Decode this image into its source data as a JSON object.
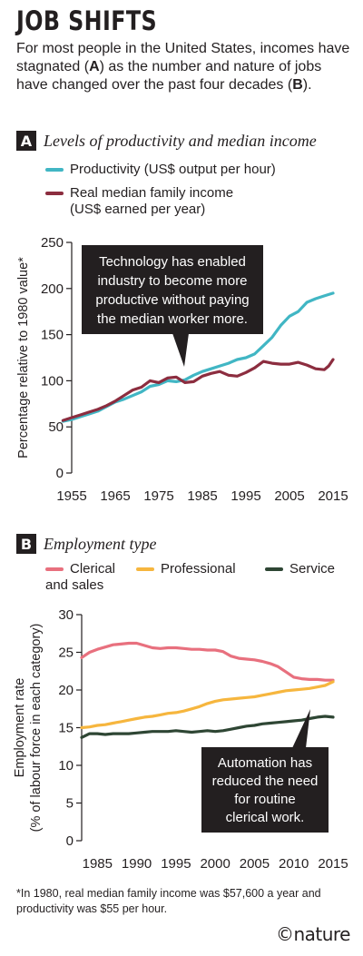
{
  "header": {
    "title": "JOB SHIFTS",
    "intro_parts": [
      "For most people in the United States, incomes have stagnated (",
      "A",
      ") as the number and nature of jobs have changed over the past four decades (",
      "B",
      ")."
    ]
  },
  "chart_data": [
    {
      "type": "line",
      "panel": "A",
      "title": "Levels of productivity and median income",
      "ylabel": "Percentage relative to 1980 value*",
      "xlabel": "",
      "xlim": [
        1955,
        2015
      ],
      "ylim": [
        0,
        250
      ],
      "x_ticks": [
        1955,
        1965,
        1975,
        1985,
        1995,
        2005,
        2015
      ],
      "y_ticks": [
        0,
        50,
        100,
        150,
        200,
        250
      ],
      "legend": [
        {
          "label": "Productivity (US$ output per hour)",
          "color": "#41b6c4"
        },
        {
          "label": "Real median family income",
          "label2": "(US$ earned per year)",
          "color": "#8c2d3f"
        }
      ],
      "series": [
        {
          "name": "Productivity (US$ output per hour)",
          "color": "#41b6c4",
          "x": [
            1953,
            1955,
            1957,
            1959,
            1961,
            1963,
            1965,
            1967,
            1969,
            1971,
            1973,
            1975,
            1977,
            1979,
            1981,
            1983,
            1985,
            1987,
            1989,
            1991,
            1993,
            1995,
            1997,
            1999,
            2001,
            2003,
            2005,
            2007,
            2009,
            2011,
            2013,
            2015
          ],
          "y": [
            56,
            58,
            61,
            64,
            67,
            72,
            77,
            80,
            84,
            88,
            94,
            96,
            100,
            99,
            101,
            106,
            110,
            113,
            116,
            119,
            123,
            125,
            129,
            138,
            147,
            160,
            170,
            175,
            185,
            189,
            192,
            195
          ]
        },
        {
          "name": "Real median family income",
          "color": "#8c2d3f",
          "x": [
            1953,
            1955,
            1957,
            1959,
            1961,
            1963,
            1965,
            1967,
            1969,
            1971,
            1973,
            1975,
            1977,
            1979,
            1981,
            1983,
            1985,
            1987,
            1989,
            1991,
            1993,
            1995,
            1997,
            1999,
            2001,
            2003,
            2005,
            2007,
            2009,
            2011,
            2013,
            2014,
            2015
          ],
          "y": [
            57,
            60,
            63,
            66,
            69,
            73,
            78,
            84,
            90,
            93,
            100,
            98,
            103,
            104,
            98,
            99,
            105,
            108,
            110,
            106,
            105,
            109,
            114,
            121,
            119,
            118,
            118,
            120,
            117,
            113,
            112,
            116,
            123
          ]
        }
      ],
      "annotation": "Technology has enabled industry to become more productive without paying the median worker more."
    },
    {
      "type": "line",
      "panel": "B",
      "title": "Employment type",
      "ylabel": "Employment rate",
      "ylabel2": "(% of labour force in each category)",
      "xlabel": "",
      "xlim": [
        1983,
        2015
      ],
      "ylim": [
        0,
        30
      ],
      "x_ticks": [
        1985,
        1990,
        1995,
        2000,
        2005,
        2010,
        2015
      ],
      "y_ticks": [
        0,
        5,
        10,
        15,
        20,
        25,
        30
      ],
      "legend": [
        {
          "label": "Clerical",
          "label2": "and sales",
          "color": "#e8707e"
        },
        {
          "label": "Professional",
          "color": "#f6b63e"
        },
        {
          "label": "Service",
          "color": "#2e4634"
        }
      ],
      "series": [
        {
          "name": "Clerical and sales",
          "color": "#e8707e",
          "x": [
            1983,
            1984,
            1985,
            1986,
            1987,
            1988,
            1989,
            1990,
            1991,
            1992,
            1993,
            1994,
            1995,
            1996,
            1997,
            1998,
            1999,
            2000,
            2001,
            2002,
            2003,
            2004,
            2005,
            2006,
            2007,
            2008,
            2009,
            2010,
            2011,
            2012,
            2013,
            2014,
            2015
          ],
          "y": [
            24.3,
            25.0,
            25.4,
            25.7,
            26.0,
            26.1,
            26.2,
            26.2,
            25.9,
            25.6,
            25.5,
            25.6,
            25.6,
            25.5,
            25.4,
            25.4,
            25.3,
            25.3,
            25.1,
            24.5,
            24.2,
            24.1,
            24.0,
            23.8,
            23.5,
            23.1,
            22.4,
            21.7,
            21.5,
            21.4,
            21.4,
            21.3,
            21.3
          ]
        },
        {
          "name": "Professional",
          "color": "#f6b63e",
          "x": [
            1983,
            1984,
            1985,
            1986,
            1987,
            1988,
            1989,
            1990,
            1991,
            1992,
            1993,
            1994,
            1995,
            1996,
            1997,
            1998,
            1999,
            2000,
            2001,
            2002,
            2003,
            2004,
            2005,
            2006,
            2007,
            2008,
            2009,
            2010,
            2011,
            2012,
            2013,
            2014,
            2015
          ],
          "y": [
            15.0,
            15.1,
            15.3,
            15.4,
            15.6,
            15.8,
            16.0,
            16.2,
            16.4,
            16.5,
            16.7,
            16.9,
            17.0,
            17.2,
            17.5,
            17.8,
            18.2,
            18.5,
            18.7,
            18.8,
            18.9,
            19.0,
            19.1,
            19.3,
            19.5,
            19.7,
            19.9,
            20.0,
            20.1,
            20.2,
            20.4,
            20.6,
            21.1
          ]
        },
        {
          "name": "Service",
          "color": "#2e4634",
          "x": [
            1983,
            1984,
            1985,
            1986,
            1987,
            1988,
            1989,
            1990,
            1991,
            1992,
            1993,
            1994,
            1995,
            1996,
            1997,
            1998,
            1999,
            2000,
            2001,
            2002,
            2003,
            2004,
            2005,
            2006,
            2007,
            2008,
            2009,
            2010,
            2011,
            2012,
            2013,
            2014,
            2015
          ],
          "y": [
            13.7,
            14.2,
            14.2,
            14.1,
            14.2,
            14.2,
            14.2,
            14.3,
            14.4,
            14.5,
            14.5,
            14.5,
            14.6,
            14.5,
            14.4,
            14.5,
            14.6,
            14.5,
            14.6,
            14.8,
            15.0,
            15.2,
            15.3,
            15.5,
            15.6,
            15.7,
            15.8,
            15.9,
            16.0,
            16.2,
            16.4,
            16.5,
            16.4
          ]
        }
      ],
      "annotation": "Automation has reduced the need for routine clerical work."
    }
  ],
  "footnote": "*In 1980, real median family income was $57,600 a year and productivity was $55 per hour.",
  "brand": "©nature"
}
